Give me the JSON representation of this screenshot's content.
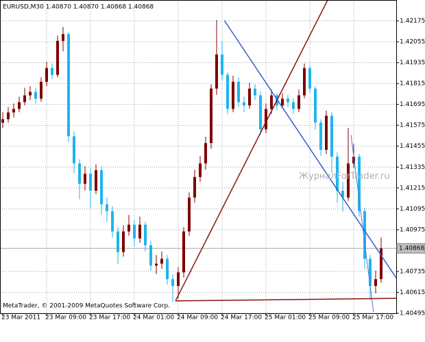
{
  "chart_data": {
    "type": "candlestick",
    "title": "EURUSD,M30  1.40870 1.40870 1.40868 1.40868",
    "footer": "MetaTrader, © 2001-2009 MetaQuotes Software Corp.",
    "watermark": "ЖурналForTrader.ru",
    "up_color": "#800000",
    "down_color": "#1eb4ee",
    "grid": true,
    "categories": [
      "23 Mar 2011",
      null,
      null,
      null,
      null,
      null,
      null,
      null,
      "23 Mar 09:00",
      null,
      null,
      null,
      null,
      null,
      null,
      null,
      "23 Mar 17:00",
      null,
      null,
      null,
      null,
      null,
      null,
      null,
      "24 Mar 01:00",
      null,
      null,
      null,
      null,
      null,
      null,
      null,
      "24 Mar 09:00",
      null,
      null,
      null,
      null,
      null,
      null,
      null,
      "24 Mar 17:00",
      null,
      null,
      null,
      null,
      null,
      null,
      null,
      "25 Mar 01:00",
      null,
      null,
      null,
      null,
      null,
      null,
      null,
      "25 Mar 09:00",
      null,
      null,
      null,
      null,
      null,
      null,
      null,
      "25 Mar 17:00",
      null,
      null,
      null,
      null,
      null
    ],
    "open": [
      1.4159,
      1.4161,
      1.41649,
      1.41669,
      1.41708,
      1.41747,
      1.41767,
      1.41728,
      1.41825,
      1.41904,
      1.41865,
      1.4206,
      1.42099,
      1.41512,
      1.41356,
      1.41239,
      1.41297,
      1.41199,
      1.41317,
      1.41121,
      1.41082,
      1.40965,
      1.40847,
      1.40965,
      1.41004,
      1.40925,
      1.41004,
      1.40886,
      1.40769,
      1.4078,
      1.40808,
      1.40691,
      1.40652,
      1.4073,
      1.40965,
      1.4116,
      1.41278,
      1.41356,
      1.41473,
      1.41786,
      1.41982,
      1.41865,
      1.41669,
      1.41825,
      1.41708,
      1.41689,
      1.41786,
      1.41747,
      1.41552,
      1.41669,
      1.41747,
      1.41689,
      1.41728,
      1.41708,
      1.41669,
      1.41747,
      1.41904,
      1.41786,
      1.41591,
      1.41434,
      1.4163,
      1.41395,
      1.41199,
      1.4116,
      1.41356,
      1.41395,
      1.41082,
      1.40808,
      1.40652,
      1.40691
    ],
    "high": [
      1.4165,
      1.4168,
      1.417,
      1.4174,
      1.4179,
      1.418,
      1.4179,
      1.4185,
      1.4194,
      1.4193,
      1.4209,
      1.4214,
      1.4211,
      1.4154,
      1.4138,
      1.4134,
      1.4133,
      1.4135,
      1.4134,
      1.4116,
      1.4111,
      1.4099,
      1.41,
      1.4106,
      1.4103,
      1.4105,
      1.4102,
      1.4091,
      1.4083,
      1.4085,
      1.4083,
      1.4072,
      1.4076,
      1.4099,
      1.4119,
      1.4132,
      1.414,
      1.4151,
      1.4181,
      1.4218,
      1.4206,
      1.4188,
      1.4186,
      1.4185,
      1.4174,
      1.4182,
      1.4181,
      1.4177,
      1.417,
      1.4178,
      1.4176,
      1.4176,
      1.4175,
      1.4173,
      1.4178,
      1.4193,
      1.4192,
      1.418,
      1.4161,
      1.4166,
      1.4165,
      1.4142,
      1.4125,
      1.4156,
      1.4147,
      1.4141,
      1.411,
      1.4083,
      1.4074,
      1.4093
    ],
    "low": [
      1.4156,
      1.4159,
      1.4162,
      1.4165,
      1.4169,
      1.4172,
      1.417,
      1.4171,
      1.418,
      1.4184,
      1.4185,
      1.42,
      1.4148,
      1.413,
      1.4115,
      1.412,
      1.411,
      1.4118,
      1.4106,
      1.4102,
      1.4093,
      1.4078,
      1.4082,
      1.4094,
      1.4088,
      1.409,
      1.4085,
      1.4074,
      1.4072,
      1.4075,
      1.4066,
      1.4056,
      1.4058,
      1.407,
      1.4094,
      1.4113,
      1.4125,
      1.4132,
      1.4144,
      1.4175,
      1.4183,
      1.4164,
      1.4165,
      1.4168,
      1.4165,
      1.4167,
      1.4172,
      1.4152,
      1.4153,
      1.4164,
      1.4166,
      1.4167,
      1.4168,
      1.4164,
      1.4165,
      1.4173,
      1.4176,
      1.4155,
      1.414,
      1.4141,
      1.413,
      1.4113,
      1.4108,
      1.4114,
      1.4133,
      1.4105,
      1.4075,
      1.4057,
      1.4061,
      1.4067
    ],
    "close": [
      1.4161,
      1.41649,
      1.41669,
      1.41708,
      1.41747,
      1.41767,
      1.41728,
      1.41825,
      1.41904,
      1.41865,
      1.4206,
      1.42099,
      1.41512,
      1.41356,
      1.41239,
      1.41297,
      1.41199,
      1.41317,
      1.41121,
      1.41082,
      1.40965,
      1.40847,
      1.40965,
      1.41004,
      1.40925,
      1.41004,
      1.40886,
      1.40769,
      1.4078,
      1.40808,
      1.40691,
      1.40652,
      1.4073,
      1.40965,
      1.4116,
      1.41278,
      1.41356,
      1.41473,
      1.41786,
      1.41982,
      1.41865,
      1.41669,
      1.41825,
      1.41708,
      1.41689,
      1.41786,
      1.41747,
      1.41552,
      1.41669,
      1.41747,
      1.41689,
      1.41728,
      1.41708,
      1.41669,
      1.41747,
      1.41904,
      1.41786,
      1.41591,
      1.41434,
      1.4163,
      1.41395,
      1.41199,
      1.4116,
      1.41356,
      1.41395,
      1.41082,
      1.40808,
      1.40652,
      1.40691,
      1.40868
    ],
    "current_price": 1.40868,
    "ylim": [
      1.40495,
      1.42295
    ],
    "yticks": [
      1.42175,
      1.42055,
      1.41935,
      1.41815,
      1.41695,
      1.41575,
      1.41455,
      1.41335,
      1.41215,
      1.41095,
      1.40975,
      1.40735,
      1.40615,
      1.40495
    ],
    "trendlines": [
      {
        "color": "#8b1010",
        "x": [
          31.5,
          59.25
        ],
        "y": [
          1.40566,
          1.42295
        ]
      },
      {
        "color": "#2f5fc8",
        "x": [
          40.4,
          71.75
        ],
        "y": [
          1.42178,
          1.40698
        ]
      },
      {
        "color": "#4a78d8",
        "x": [
          63.5,
          67.6
        ],
        "y": [
          1.4152,
          1.40503
        ]
      },
      {
        "color": "#8b1010",
        "x": [
          31.5,
          72
        ],
        "y": [
          1.40566,
          1.40581
        ]
      }
    ]
  }
}
